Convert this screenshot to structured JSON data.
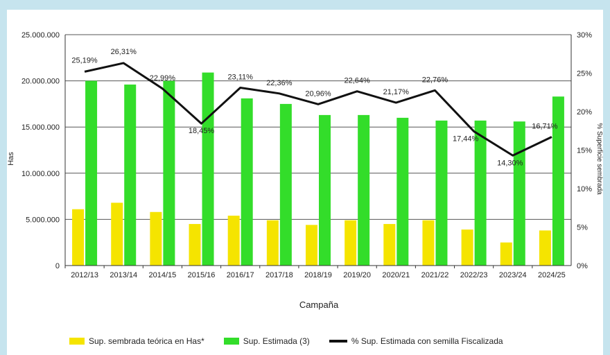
{
  "chart_data": {
    "type": "bar",
    "xlabel": "Campaña",
    "ylabel": "Has",
    "y2label": "% Superficie sembrada",
    "ylim": [
      0,
      25000000
    ],
    "y2lim": [
      0,
      30
    ],
    "yticks": [
      "0",
      "5.000.000",
      "10.000.000",
      "15.000.000",
      "20.000.000",
      "25.000.000"
    ],
    "y2ticks": [
      "0%",
      "5%",
      "10%",
      "15%",
      "20%",
      "25%",
      "30%"
    ],
    "grid": true,
    "legend_position": "bottom",
    "categories": [
      "2012/13",
      "2013/14",
      "2014/15",
      "2015/16",
      "2016/17",
      "2017/18",
      "2018/19",
      "2019/20",
      "2020/21",
      "2021/22",
      "2022/23",
      "2023/24",
      "2024/25"
    ],
    "series": [
      {
        "name": "Sup. sembrada teórica en Has*",
        "type": "bar",
        "color": "#f5e400",
        "values": [
          6100000,
          6800000,
          5800000,
          4500000,
          5400000,
          4900000,
          4400000,
          4900000,
          4500000,
          4900000,
          3900000,
          2500000,
          3800000
        ]
      },
      {
        "name": "Sup. Estimada (3)",
        "type": "bar",
        "color": "#33dd2a",
        "values": [
          20000000,
          19600000,
          20000000,
          20900000,
          18100000,
          17500000,
          16300000,
          16300000,
          16000000,
          15700000,
          15700000,
          15600000,
          18300000
        ]
      },
      {
        "name": "% Sup. Estimada con semilla Fiscalizada",
        "type": "line",
        "axis": "right",
        "color": "#111111",
        "values": [
          25.19,
          26.31,
          22.99,
          18.45,
          23.11,
          22.36,
          20.96,
          22.64,
          21.17,
          22.76,
          17.44,
          14.3,
          16.71
        ],
        "labels": [
          "25,19%",
          "26,31%",
          "22,99%",
          "18,45%",
          "23,11%",
          "22,36%",
          "20,96%",
          "22,64%",
          "21,17%",
          "22,76%",
          "17,44%",
          "14,30%",
          "16,71%"
        ]
      }
    ]
  }
}
